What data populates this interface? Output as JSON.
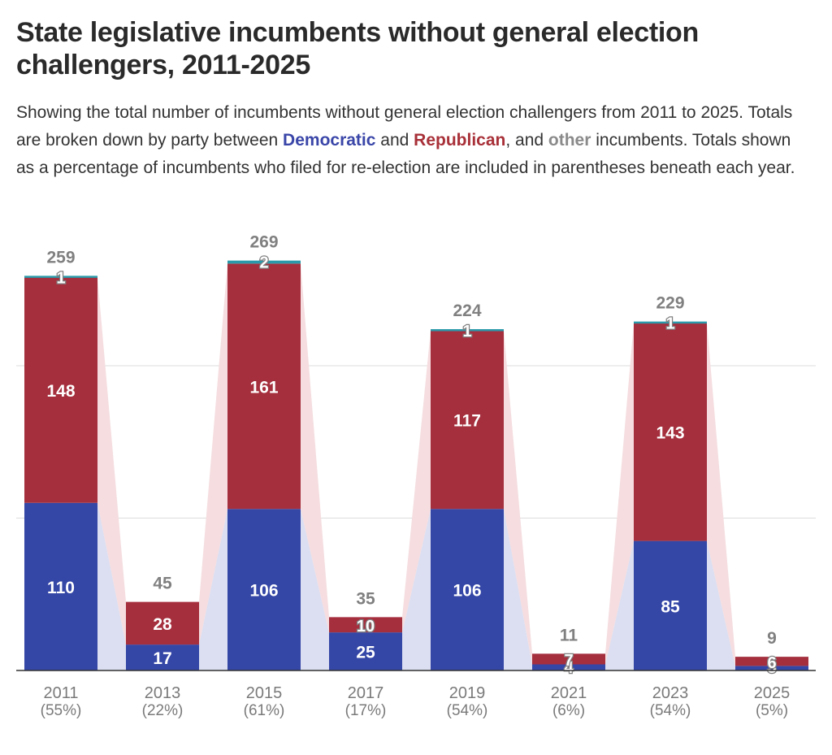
{
  "page": {
    "subtitle_parts": {
      "p1": "Showing the total number of incumbents without general election challengers from 2011 to 2025. Totals are broken down by party between ",
      "dem": "Democratic",
      "p2": " and ",
      "rep": "Republican",
      "p3": ", and ",
      "oth": "other",
      "p4": " incumbents. Totals shown as a percentage of incumbents who filed for re-election are included in parentheses beneath each year."
    }
  },
  "colors": {
    "democratic": "#3446a6",
    "republican": "#a52f3d",
    "other": "#2a9aaa",
    "dem_band": "#dcdff1",
    "rep_band": "#f5dde0",
    "grid": "#dddddd",
    "axis": "#333333"
  },
  "chart_data": {
    "type": "bar",
    "stacked": true,
    "title": "State legislative incumbents without general election challengers, 2011-2025",
    "categories": [
      "2011",
      "2013",
      "2015",
      "2017",
      "2019",
      "2021",
      "2023",
      "2025"
    ],
    "percentages": [
      "(55%)",
      "(22%)",
      "(61%)",
      "(17%)",
      "(54%)",
      "(6%)",
      "(54%)",
      "(5%)"
    ],
    "totals": [
      259,
      45,
      269,
      35,
      224,
      11,
      229,
      9
    ],
    "series": [
      {
        "name": "Democratic",
        "values": [
          110,
          17,
          106,
          25,
          106,
          4,
          85,
          3
        ]
      },
      {
        "name": "Republican",
        "values": [
          148,
          28,
          161,
          10,
          117,
          7,
          143,
          6
        ]
      },
      {
        "name": "other",
        "values": [
          1,
          0,
          2,
          0,
          1,
          0,
          1,
          0
        ]
      }
    ],
    "ylim": [
      0,
      280
    ],
    "gridlines": [
      100,
      200
    ],
    "grid": true,
    "legend": "inline in subtitle"
  }
}
